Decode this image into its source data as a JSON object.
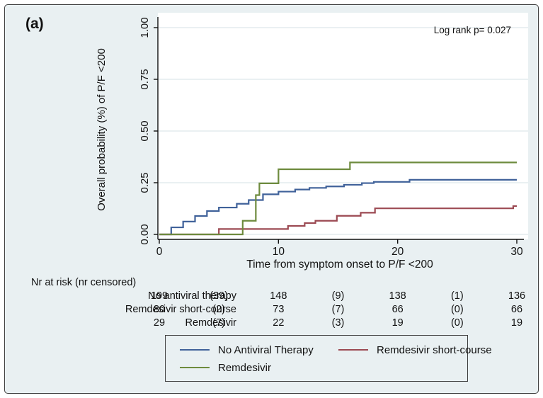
{
  "figure": {
    "panel_label": "(a)",
    "background_color": "#e9f0f2",
    "frame_border_color": "#3f3f3f"
  },
  "chart_data": {
    "type": "line",
    "subtype": "kaplan-meier-step",
    "title": "",
    "annotation": "Log rank p= 0.027",
    "xlabel": "Time from symptom onset to P/F <200",
    "ylabel": "Overall probability (%) of P/F <200",
    "xlim": [
      0,
      30
    ],
    "ylim": [
      0,
      1.0
    ],
    "grid": true,
    "plot_background": "#ffffff",
    "grid_color": "#dde7ea",
    "axis_color": "#111111",
    "xticks": [
      0,
      10,
      20,
      30
    ],
    "ytick_values": [
      0,
      0.25,
      0.5,
      0.75,
      1.0
    ],
    "ytick_labels": [
      "0.00",
      "0.25",
      "0.50",
      "0.75",
      "1.00"
    ],
    "series": [
      {
        "name": "No Antiviral Therapy",
        "color": "#40629a",
        "steps": [
          [
            0,
            0
          ],
          [
            1,
            0.034
          ],
          [
            2,
            0.062
          ],
          [
            3,
            0.089
          ],
          [
            4,
            0.113
          ],
          [
            5,
            0.13
          ],
          [
            6.5,
            0.148
          ],
          [
            7.5,
            0.166
          ],
          [
            8.7,
            0.194
          ],
          [
            10,
            0.207
          ],
          [
            11.4,
            0.217
          ],
          [
            12.6,
            0.225
          ],
          [
            14,
            0.232
          ],
          [
            15.5,
            0.24
          ],
          [
            17,
            0.248
          ],
          [
            18,
            0.254
          ],
          [
            21,
            0.264
          ],
          [
            30,
            0.264
          ]
        ]
      },
      {
        "name": "Remdesivir short-course",
        "color": "#9c4a53",
        "steps": [
          [
            0,
            0
          ],
          [
            5,
            0.026
          ],
          [
            10.8,
            0.041
          ],
          [
            12.2,
            0.055
          ],
          [
            13.1,
            0.066
          ],
          [
            14.9,
            0.09
          ],
          [
            16.9,
            0.105
          ],
          [
            18.1,
            0.126
          ],
          [
            29.7,
            0.137
          ],
          [
            30,
            0.137
          ]
        ]
      },
      {
        "name": "Remdesivir",
        "color": "#6e8b3e",
        "steps": [
          [
            0,
            0
          ],
          [
            7,
            0.066
          ],
          [
            8.1,
            0.19
          ],
          [
            8.4,
            0.247
          ],
          [
            10,
            0.315
          ],
          [
            16,
            0.348
          ],
          [
            30,
            0.348
          ]
        ]
      }
    ],
    "legend": {
      "position": "bottom",
      "rows": [
        [
          "No Antiviral Therapy",
          "Remdesivir short-course"
        ],
        [
          "Remdesivir"
        ]
      ]
    }
  },
  "risk_table": {
    "header": "Nr at risk (nr censored)",
    "time_points": [
      0,
      5,
      10,
      15,
      20,
      25,
      30
    ],
    "rows": [
      {
        "label": "No antiviral therapy",
        "values": [
          "199",
          "(39)",
          "148",
          "(9)",
          "138",
          "(1)",
          "136"
        ]
      },
      {
        "label": "Remdesivir short-course",
        "values": [
          "80",
          "(2)",
          "73",
          "(7)",
          "66",
          "(0)",
          "66"
        ]
      },
      {
        "label": "Remdesivir",
        "values": [
          "29",
          "(7)",
          "22",
          "(3)",
          "19",
          "(0)",
          "19"
        ]
      }
    ]
  }
}
